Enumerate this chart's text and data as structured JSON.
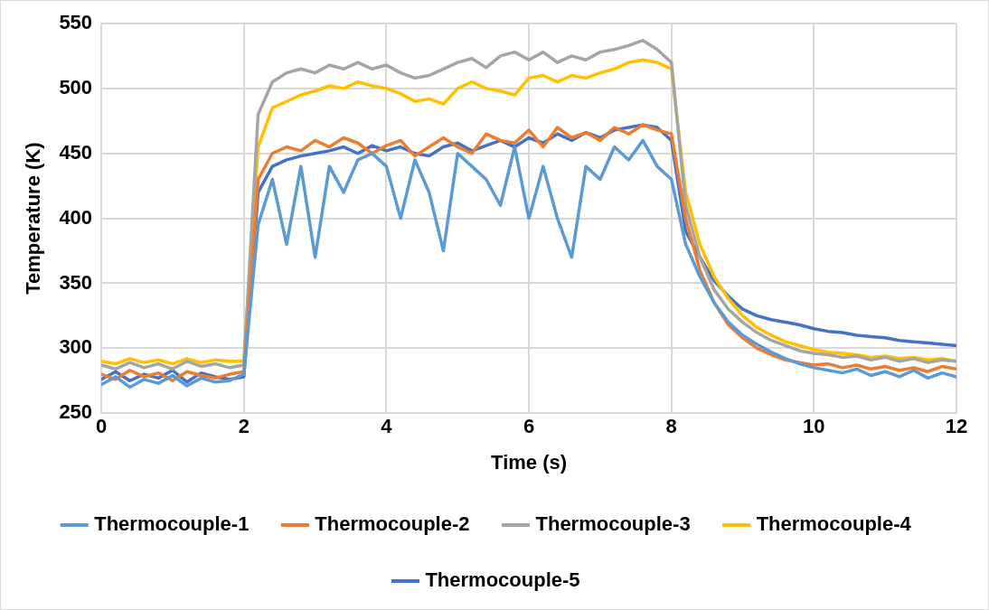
{
  "chart_data": {
    "type": "line",
    "xlabel": "Time (s)",
    "ylabel": "Temperature (K)",
    "x": [
      0,
      0.2,
      0.4,
      0.6,
      0.8,
      1,
      1.2,
      1.4,
      1.6,
      1.8,
      2,
      2.2,
      2.4,
      2.6,
      2.8,
      3,
      3.2,
      3.4,
      3.6,
      3.8,
      4,
      4.2,
      4.4,
      4.6,
      4.8,
      5,
      5.2,
      5.4,
      5.6,
      5.8,
      6,
      6.2,
      6.4,
      6.6,
      6.8,
      7,
      7.2,
      7.4,
      7.6,
      7.8,
      8,
      8.2,
      8.4,
      8.6,
      8.8,
      9,
      9.2,
      9.4,
      9.6,
      9.8,
      10,
      10.2,
      10.4,
      10.6,
      10.8,
      11,
      11.2,
      11.4,
      11.6,
      11.8,
      12
    ],
    "xlim": [
      0,
      12
    ],
    "xticks": [
      0,
      2,
      4,
      6,
      8,
      10,
      12
    ],
    "ylim": [
      250,
      550
    ],
    "yticks": [
      250,
      300,
      350,
      400,
      450,
      500,
      550
    ],
    "grid": true,
    "legend": "bottom",
    "marker": "none",
    "line_style": "solid",
    "series": [
      {
        "name": "Thermocouple-1",
        "color": "#5b9bd5",
        "values": [
          272,
          278,
          270,
          276,
          273,
          279,
          271,
          277,
          274,
          275,
          280,
          395,
          430,
          380,
          440,
          370,
          440,
          420,
          445,
          450,
          440,
          400,
          445,
          420,
          375,
          450,
          440,
          430,
          410,
          455,
          400,
          440,
          400,
          370,
          440,
          430,
          455,
          445,
          460,
          440,
          430,
          380,
          355,
          335,
          320,
          310,
          303,
          297,
          292,
          288,
          285,
          283,
          281,
          284,
          279,
          282,
          278,
          283,
          277,
          281,
          278
        ]
      },
      {
        "name": "Thermocouple-2",
        "color": "#ed7d31",
        "values": [
          280,
          276,
          283,
          278,
          281,
          275,
          282,
          279,
          277,
          280,
          282,
          430,
          450,
          455,
          452,
          460,
          455,
          462,
          458,
          450,
          456,
          460,
          448,
          455,
          462,
          455,
          450,
          465,
          460,
          458,
          468,
          455,
          470,
          462,
          466,
          460,
          470,
          465,
          472,
          468,
          465,
          400,
          360,
          335,
          318,
          308,
          300,
          295,
          291,
          289,
          287,
          288,
          285,
          287,
          284,
          286,
          283,
          285,
          282,
          286,
          284
        ]
      },
      {
        "name": "Thermocouple-3",
        "color": "#a5a5a5",
        "values": [
          287,
          284,
          289,
          285,
          288,
          284,
          290,
          286,
          288,
          285,
          287,
          480,
          505,
          512,
          515,
          512,
          518,
          515,
          520,
          515,
          518,
          512,
          508,
          510,
          515,
          520,
          523,
          516,
          525,
          528,
          522,
          528,
          520,
          525,
          522,
          528,
          530,
          533,
          537,
          530,
          520,
          410,
          370,
          345,
          330,
          320,
          312,
          306,
          302,
          298,
          296,
          295,
          293,
          294,
          291,
          293,
          290,
          292,
          289,
          291,
          290
        ]
      },
      {
        "name": "Thermocouple-4",
        "color": "#ffc000",
        "values": [
          290,
          288,
          292,
          289,
          291,
          288,
          292,
          289,
          291,
          290,
          290,
          455,
          485,
          490,
          495,
          498,
          502,
          500,
          505,
          502,
          500,
          496,
          490,
          492,
          488,
          500,
          505,
          500,
          498,
          495,
          508,
          510,
          505,
          510,
          508,
          512,
          515,
          520,
          522,
          520,
          515,
          420,
          380,
          355,
          338,
          325,
          316,
          310,
          305,
          302,
          299,
          297,
          296,
          295,
          293,
          294,
          292,
          293,
          291,
          292,
          290
        ]
      },
      {
        "name": "Thermocouple-5",
        "color": "#4472c4",
        "values": [
          276,
          282,
          275,
          280,
          277,
          283,
          274,
          281,
          278,
          276,
          278,
          420,
          440,
          445,
          448,
          450,
          452,
          455,
          450,
          456,
          452,
          455,
          450,
          448,
          455,
          458,
          452,
          456,
          460,
          455,
          462,
          458,
          465,
          460,
          466,
          462,
          468,
          470,
          472,
          470,
          460,
          390,
          370,
          352,
          340,
          330,
          325,
          322,
          320,
          318,
          315,
          313,
          312,
          310,
          309,
          308,
          306,
          305,
          304,
          303,
          302
        ]
      }
    ]
  }
}
